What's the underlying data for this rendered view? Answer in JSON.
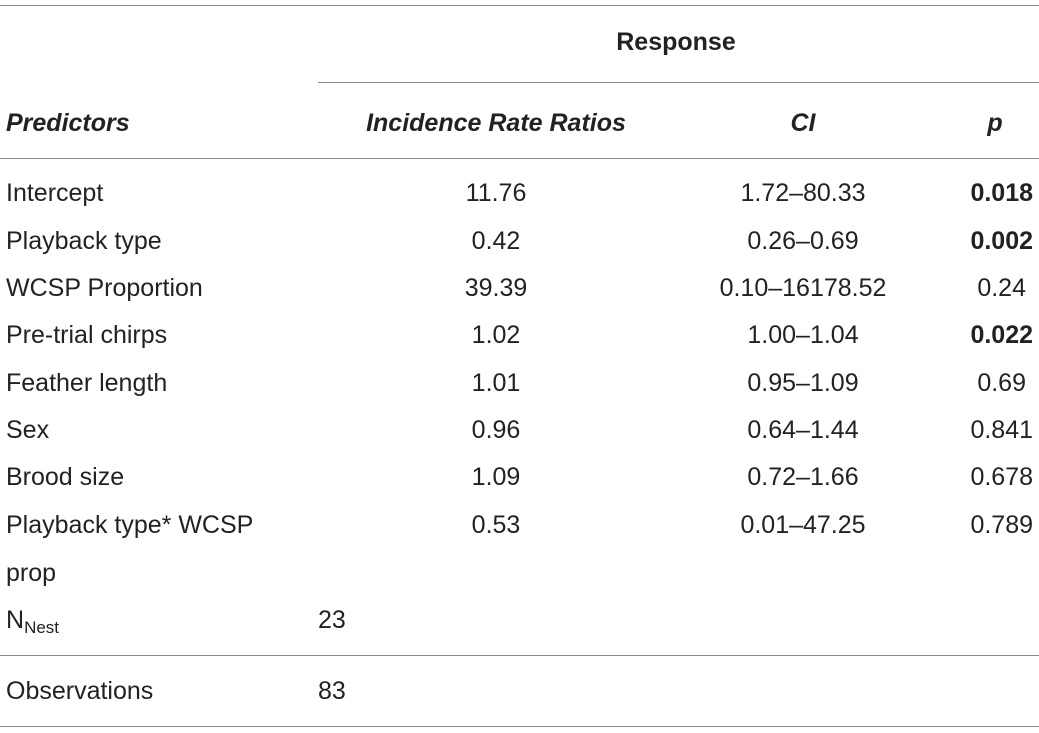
{
  "header": {
    "group_label": "Response",
    "predictors": "Predictors",
    "irr": "Incidence Rate Ratios",
    "ci": "CI",
    "p": "p"
  },
  "rows": [
    {
      "predictor": "Intercept",
      "irr": "11.76",
      "ci": "1.72–80.33",
      "p": "0.018",
      "significant": true
    },
    {
      "predictor": "Playback type",
      "irr": "0.42",
      "ci": "0.26–0.69",
      "p": "0.002",
      "significant": true
    },
    {
      "predictor": "WCSP Proportion",
      "irr": "39.39",
      "ci": "0.10–16178.52",
      "p": "0.24",
      "significant": false
    },
    {
      "predictor": "Pre-trial chirps",
      "irr": "1.02",
      "ci": "1.00–1.04",
      "p": "0.022",
      "significant": true
    },
    {
      "predictor": "Feather length",
      "irr": "1.01",
      "ci": "0.95–1.09",
      "p": "0.69",
      "significant": false
    },
    {
      "predictor": "Sex",
      "irr": "0.96",
      "ci": "0.64–1.44",
      "p": "0.841",
      "significant": false
    },
    {
      "predictor": "Brood size",
      "irr": "1.09",
      "ci": "0.72–1.66",
      "p": "0.678",
      "significant": false
    },
    {
      "predictor": "Playback type* WCSP",
      "predictor_cont": "prop",
      "irr": "0.53",
      "ci": "0.01–47.25",
      "p": "0.789",
      "significant": false
    }
  ],
  "n_nest": {
    "label": "N",
    "sub": "Nest",
    "value": "23"
  },
  "observations": {
    "label": "Observations",
    "value": "83"
  }
}
